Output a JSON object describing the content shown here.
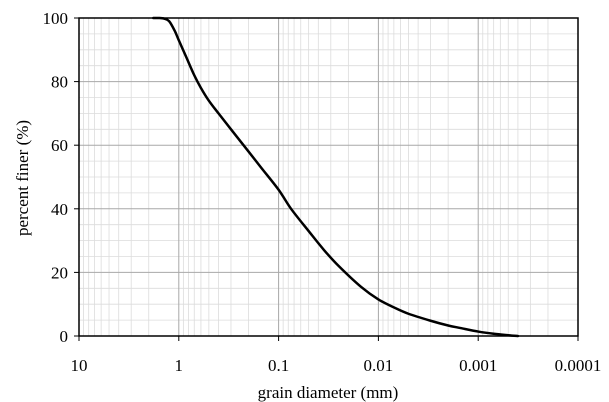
{
  "chart_data": {
    "type": "line",
    "title": "",
    "xlabel": "grain diameter (mm)",
    "ylabel": "percent finer (%)",
    "x_scale": "log",
    "x_reversed": true,
    "xlim": [
      10,
      0.0001
    ],
    "ylim": [
      0,
      100
    ],
    "x_ticks": [
      10,
      1,
      0.1,
      0.01,
      0.001,
      0.0001
    ],
    "x_tick_labels": [
      "10",
      "1",
      "0.1",
      "0.01",
      "0.001",
      "0.0001"
    ],
    "y_ticks": [
      0,
      20,
      40,
      60,
      80,
      100
    ],
    "y_tick_labels": [
      "0",
      "20",
      "40",
      "60",
      "80",
      "100"
    ],
    "grid": true,
    "legend": "none",
    "series": [
      {
        "color": "#000000",
        "x": [
          1.8,
          1.6,
          1.4,
          1.25,
          1.1,
          1.0,
          0.85,
          0.7,
          0.6,
          0.5,
          0.4,
          0.3,
          0.2,
          0.15,
          0.1,
          0.075,
          0.05,
          0.035,
          0.025,
          0.015,
          0.01,
          0.007,
          0.005,
          0.003,
          0.002,
          0.0015,
          0.001,
          0.0007,
          0.0005,
          0.0004
        ],
        "y": [
          100,
          100,
          99.8,
          99,
          96,
          93,
          88,
          82,
          78,
          74,
          70,
          65,
          58,
          53,
          46,
          40,
          33,
          27,
          22,
          15.5,
          11.5,
          9,
          7,
          4.8,
          3.3,
          2.5,
          1.4,
          0.7,
          0.25,
          0
        ]
      }
    ]
  }
}
